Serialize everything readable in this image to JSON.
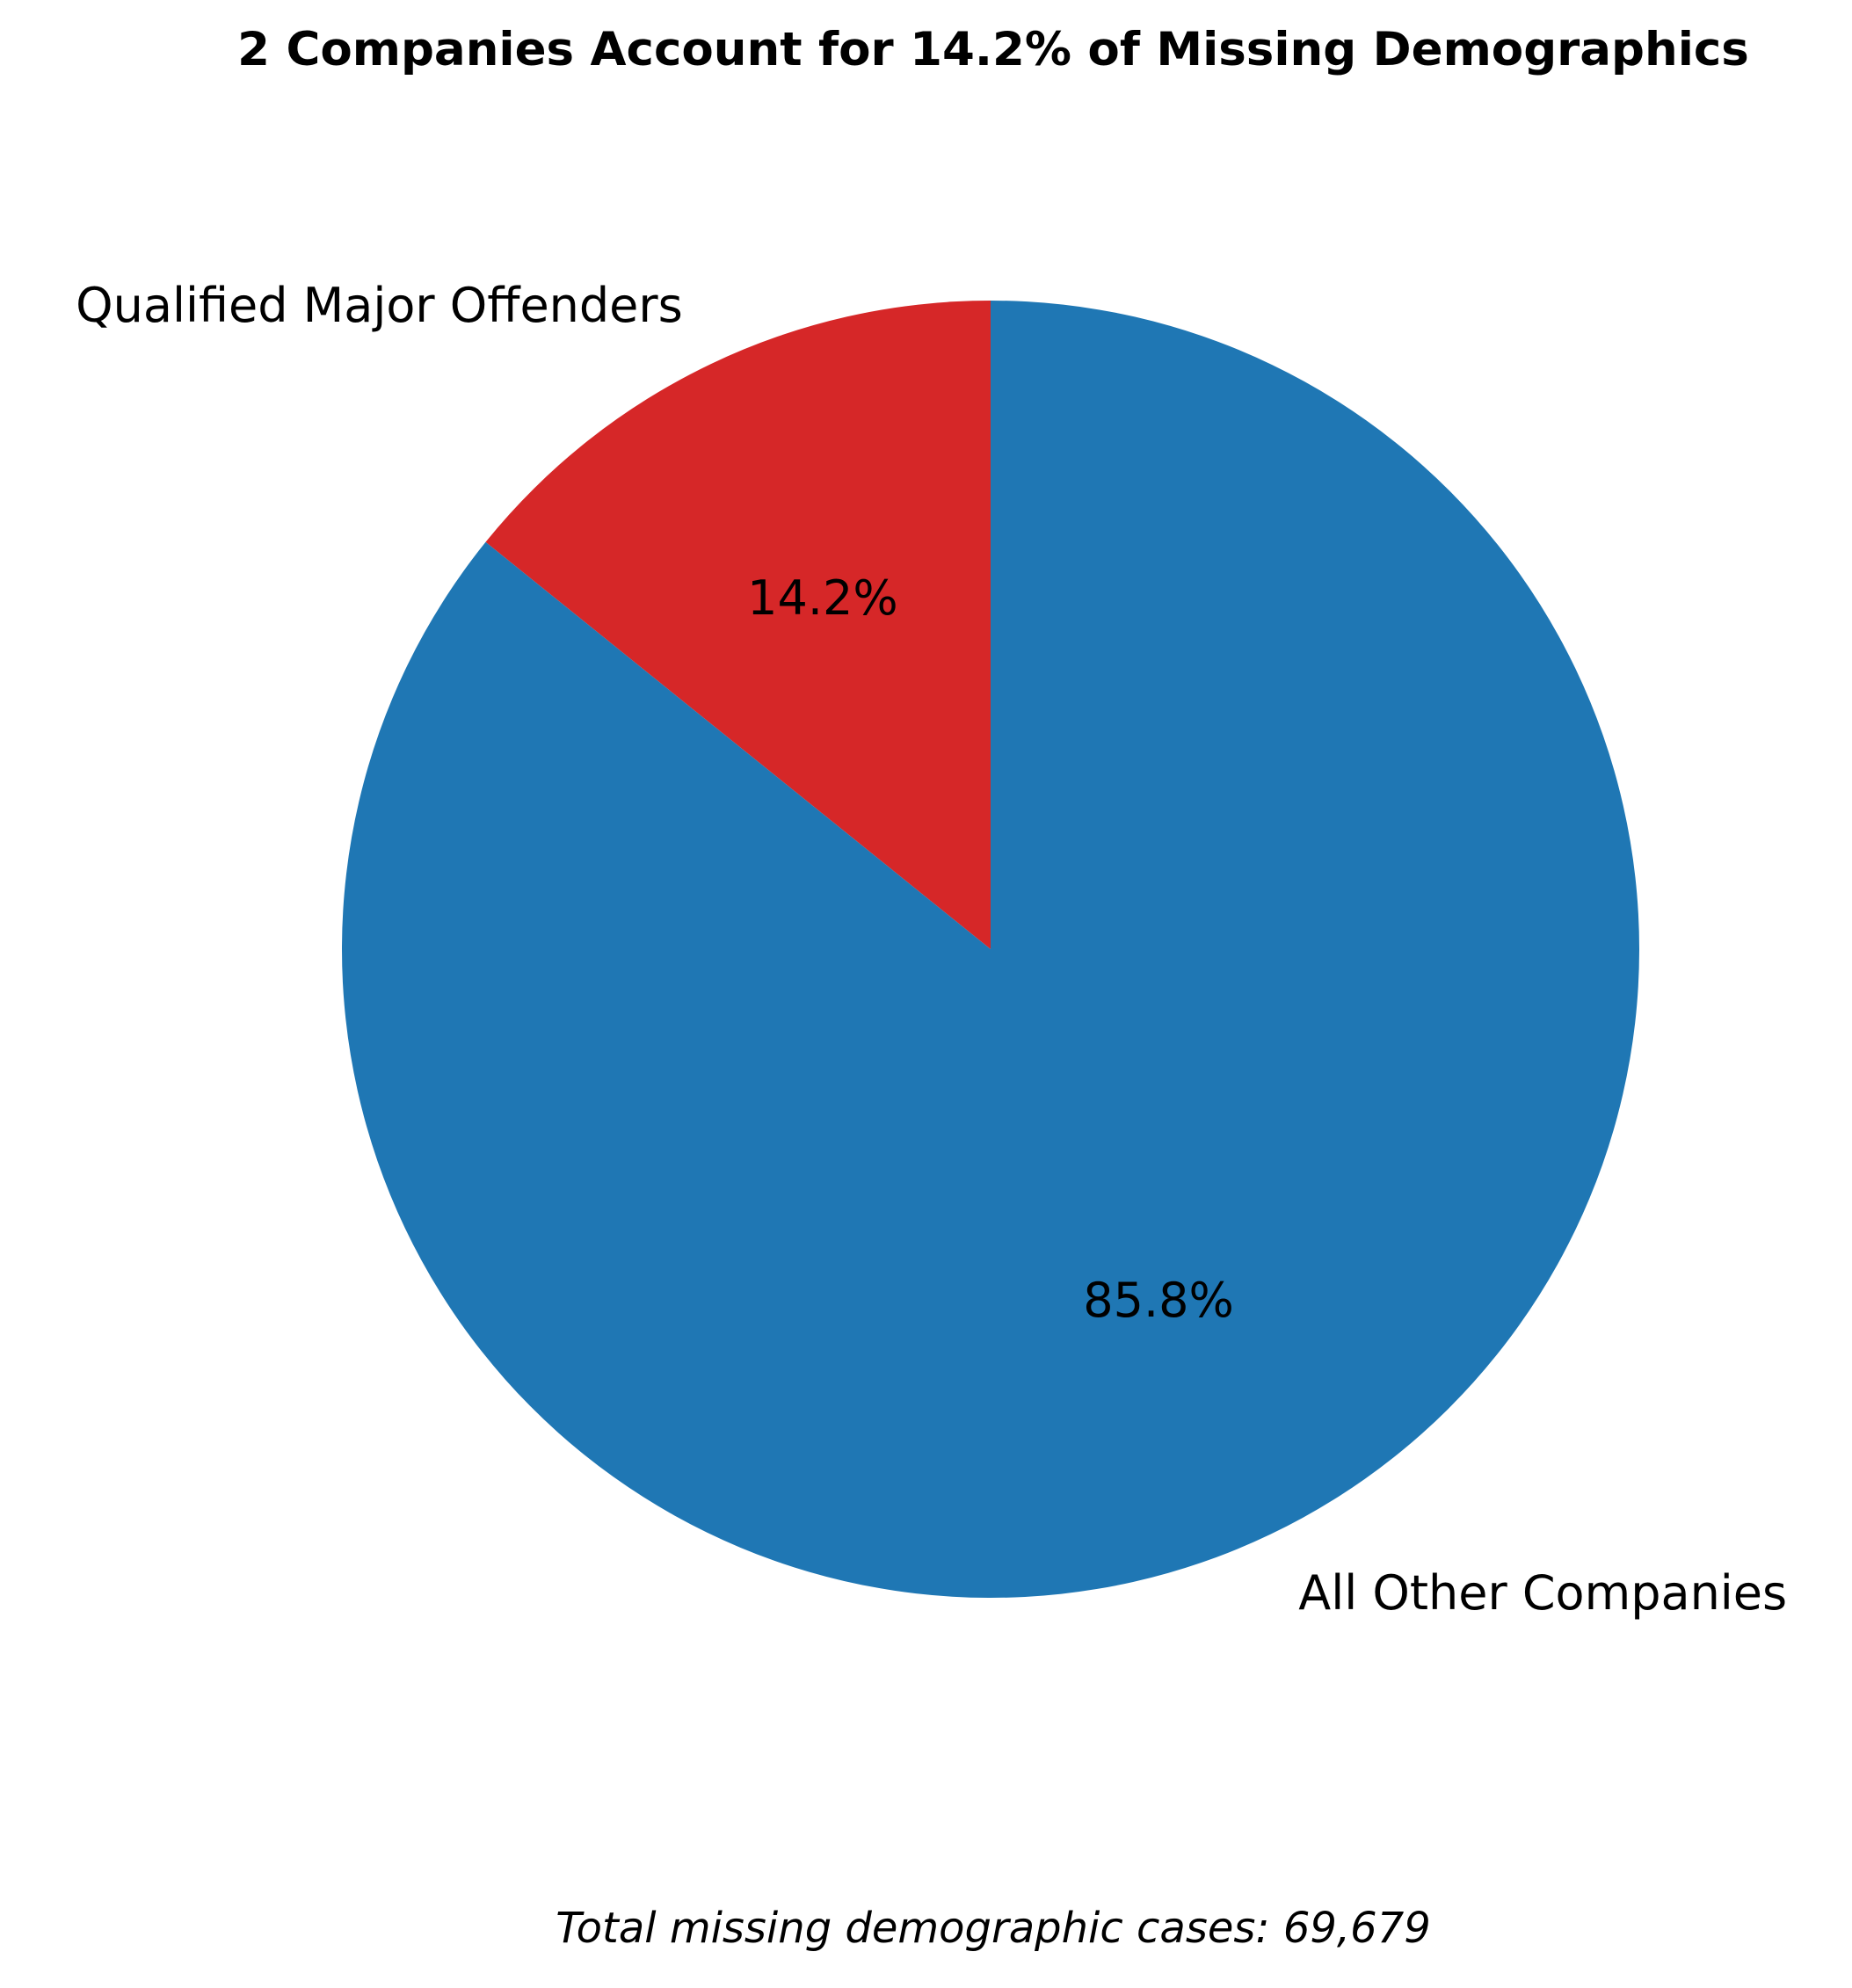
{
  "chart_data": {
    "type": "pie",
    "title": "2 Companies Account for 14.2% of Missing Demographics",
    "slices": [
      {
        "label": "Qualified Major Offenders",
        "value": 14.2,
        "pct_label": "14.2%",
        "color": "#d62728"
      },
      {
        "label": "All Other Companies",
        "value": 85.8,
        "pct_label": "85.8%",
        "color": "#1f77b4"
      }
    ],
    "start_angle_deg": 90,
    "direction": "counterclockwise",
    "footnote": "Total missing demographic cases: 69,679"
  }
}
